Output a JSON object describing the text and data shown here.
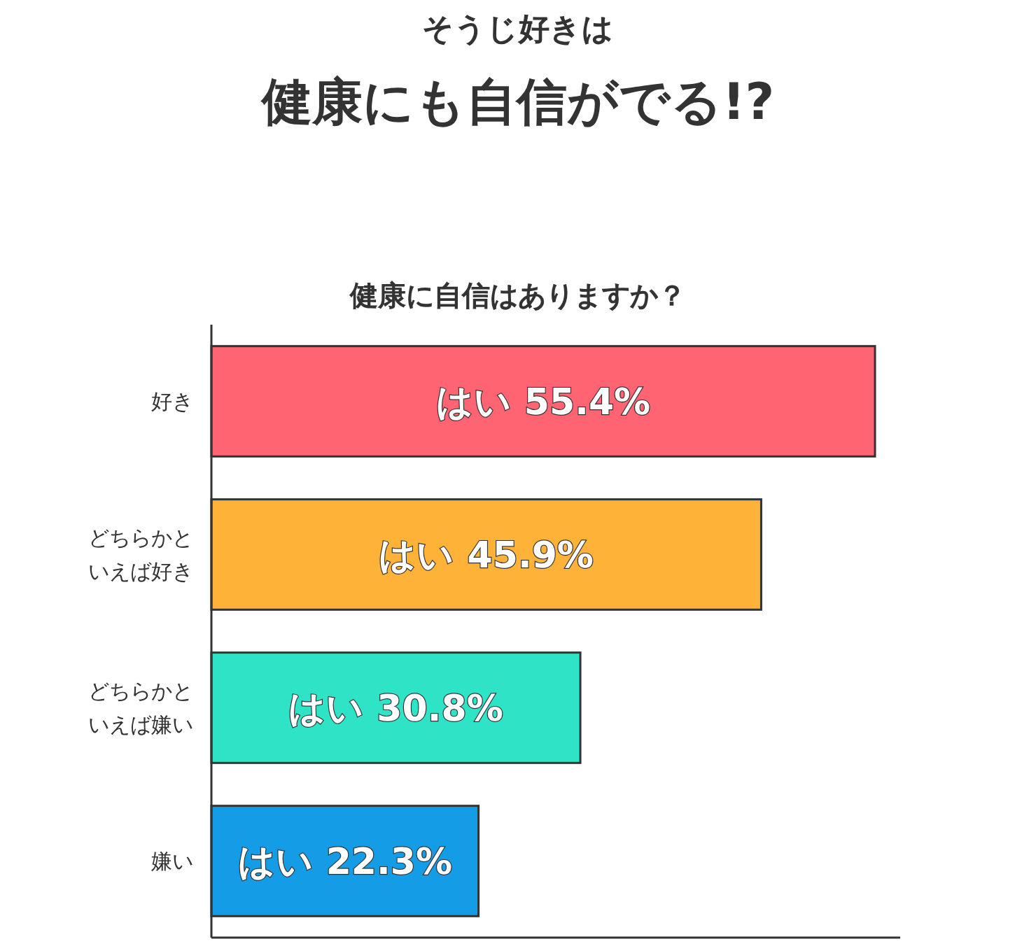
{
  "chart_data": {
    "type": "bar",
    "orientation": "horizontal",
    "title": "そうじ好きは",
    "subtitle": "健康にも自信がでる!?",
    "annotations": [
      "健康に自信はありますか？"
    ],
    "categories": [
      "好き",
      "どちらかといえば好き",
      "どちらかといえば嫌い",
      "嫌い"
    ],
    "values": [
      55.4,
      45.9,
      30.8,
      22.3
    ],
    "colors": [
      "#ff6473",
      "#ffb238",
      "#2ee3c6",
      "#149de6"
    ],
    "value_labels": [
      "はい 55.4%",
      "はい 45.9%",
      "はい 30.8%",
      "はい 22.3%"
    ]
  }
}
